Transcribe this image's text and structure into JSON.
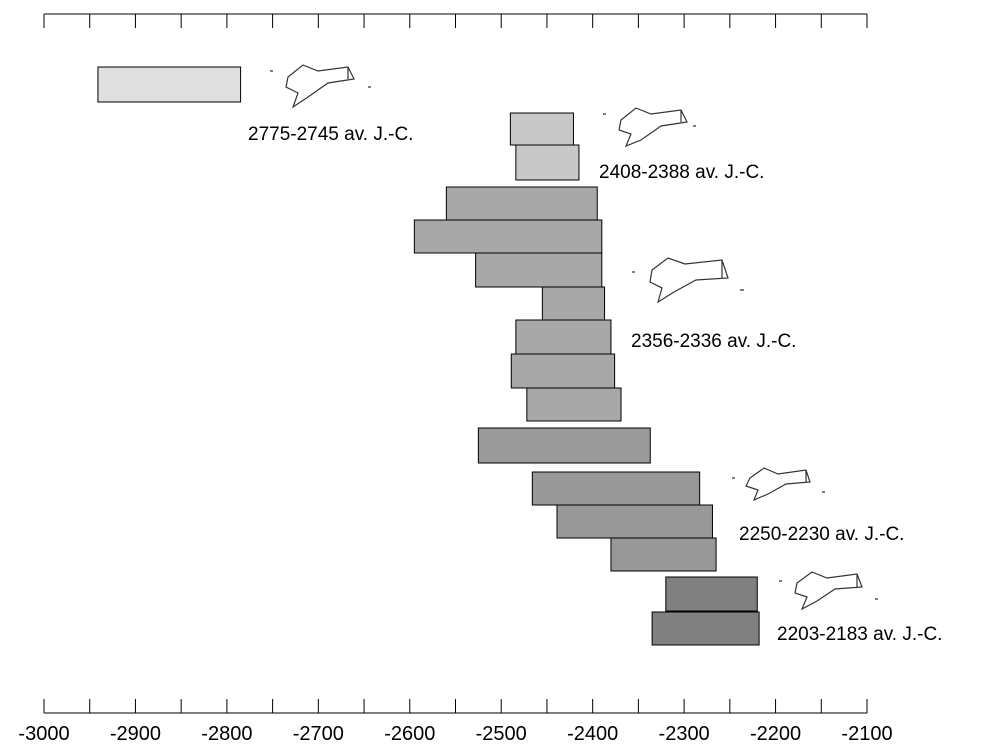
{
  "chart_data": {
    "type": "range-bar",
    "starts": [
      -2941,
      -2490,
      -2484,
      -2560,
      -2595,
      -2528,
      -2455,
      -2484,
      -2489,
      -2472,
      -2525,
      -2466,
      -2439,
      -2380,
      -2320,
      -2335
    ],
    "ends": [
      -2785,
      -2421,
      -2415,
      -2395,
      -2390,
      -2390,
      -2387,
      -2380,
      -2376,
      -2369,
      -2337,
      -2283,
      -2269,
      -2265,
      -2220,
      -2218
    ],
    "colors": [
      "#e0e0e0",
      "#c8c8c8",
      "#c8c8c8",
      "#a8a8a8",
      "#a8a8a8",
      "#a8a8a8",
      "#a8a8a8",
      "#a8a8a8",
      "#a8a8a8",
      "#a8a8a8",
      "#9a9a9a",
      "#989898",
      "#989898",
      "#989898",
      "#808080",
      "#808080"
    ],
    "annotations": [
      "2775-2745 av. J.-C.",
      "2408-2388 av. J.-C.",
      "2356-2336 av. J.-C.",
      "2250-2230 av. J.-C.",
      "2203-2183 av. J.-C."
    ],
    "xlim": [
      -3000,
      -2100
    ],
    "xticks": [
      -3000,
      -2900,
      -2800,
      -2700,
      -2600,
      -2500,
      -2400,
      -2300,
      -2200,
      -2100
    ],
    "xminorticks": [
      -2950,
      -2850,
      -2750,
      -2650,
      -2550,
      -2450,
      -2350,
      -2250,
      -2150
    ]
  }
}
